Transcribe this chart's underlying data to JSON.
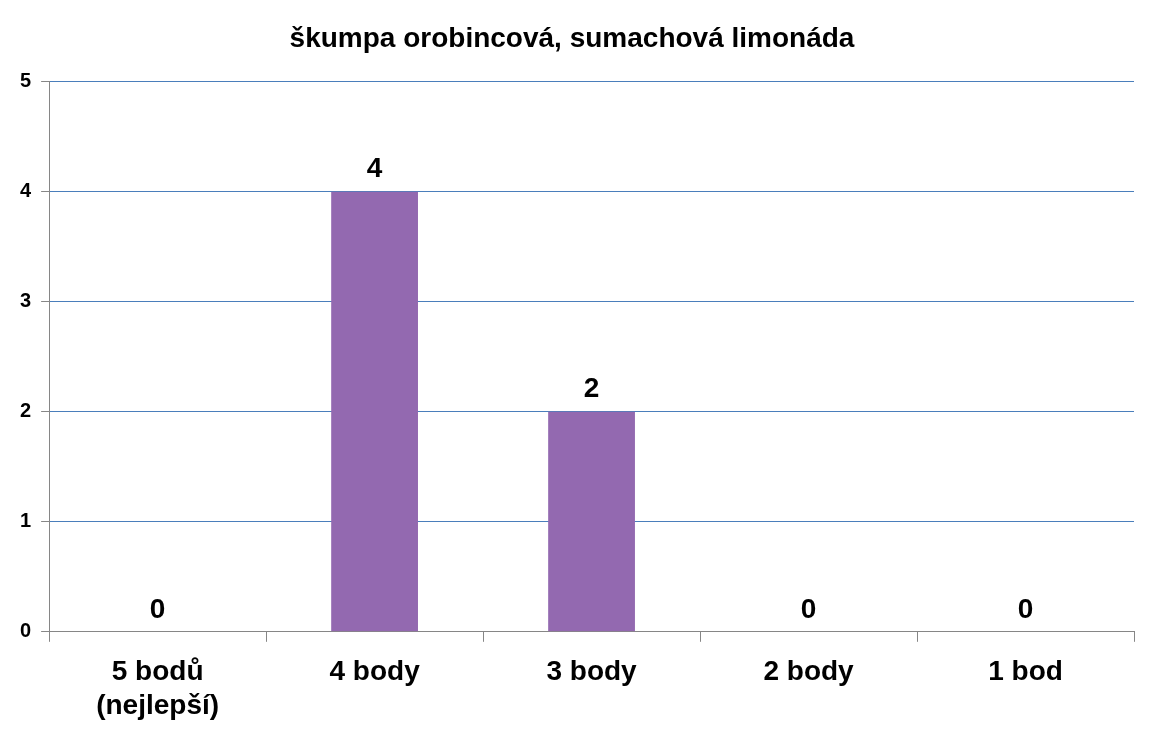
{
  "chart_data": {
    "type": "bar",
    "title": "škumpa orobincová, sumachová limonáda",
    "categories": [
      "5 bodů (nejlepší)",
      "4 body",
      "3 body",
      "2 body",
      "1 bod"
    ],
    "values": [
      0,
      4,
      2,
      0,
      0
    ],
    "color": "#9369b0",
    "ylim": [
      0,
      5
    ],
    "yticks": [
      0,
      1,
      2,
      3,
      4,
      5
    ],
    "grid": "y",
    "legend": false,
    "data_labels": true
  }
}
